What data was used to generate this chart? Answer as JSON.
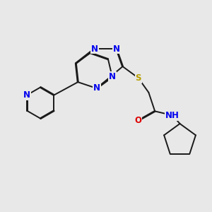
{
  "bg_color": "#e8e8e8",
  "bond_color": "#1a1a1a",
  "bond_width": 1.4,
  "dbl_sep": 0.018,
  "atom_colors": {
    "N": "#0000ee",
    "S": "#b8a000",
    "O": "#dd0000",
    "H": "#777777",
    "C": "#1a1a1a"
  },
  "fontsize": 8.5
}
